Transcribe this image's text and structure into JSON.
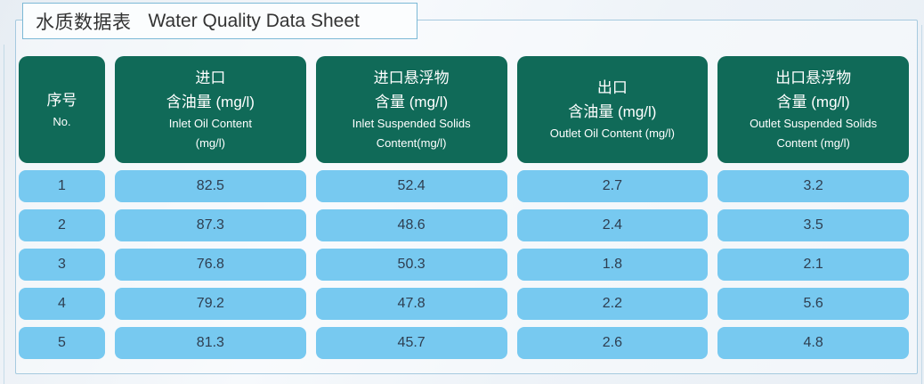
{
  "title": {
    "zh": "水质数据表",
    "en": "Water Quality Data Sheet"
  },
  "table": {
    "columns": [
      {
        "zh": [
          "序号"
        ],
        "en": [
          "No."
        ]
      },
      {
        "zh": [
          "进口",
          "含油量 (mg/l)"
        ],
        "en": [
          "Inlet Oil Content",
          "(mg/l)"
        ]
      },
      {
        "zh": [
          "进口悬浮物",
          "含量 (mg/l)"
        ],
        "en": [
          "Inlet Suspended Solids",
          "Content(mg/l)"
        ]
      },
      {
        "zh": [
          "出口",
          "含油量 (mg/l)"
        ],
        "en": [
          "Outlet Oil Content (mg/l)"
        ]
      },
      {
        "zh": [
          "出口悬浮物",
          "含量 (mg/l)"
        ],
        "en": [
          "Outlet Suspended Solids",
          "Content (mg/l)"
        ]
      }
    ],
    "rows": [
      [
        "1",
        "82.5",
        "52.4",
        "2.7",
        "3.2"
      ],
      [
        "2",
        "87.3",
        "48.6",
        "2.4",
        "3.5"
      ],
      [
        "3",
        "76.8",
        "50.3",
        "1.8",
        "2.1"
      ],
      [
        "4",
        "79.2",
        "47.8",
        "2.2",
        "5.6"
      ],
      [
        "5",
        "81.3",
        "45.7",
        "2.6",
        "4.8"
      ]
    ]
  },
  "colors": {
    "header_bg": "#106a58",
    "cell_bg": "#77c9f0",
    "frame_border": "#a6cadf",
    "title_border": "#7cb9d6",
    "header_text": "#ffffff",
    "cell_text": "#2e3e50"
  },
  "chart_data": {
    "type": "table",
    "title": "水质数据表 Water Quality Data Sheet",
    "columns": [
      "序号 No.",
      "进口含油量 (mg/l) Inlet Oil Content (mg/l)",
      "进口悬浮物含量 (mg/l) Inlet Suspended Solids Content(mg/l)",
      "出口含油量 (mg/l) Outlet Oil Content (mg/l)",
      "出口悬浮物含量 (mg/l) Outlet Suspended Solids Content (mg/l)"
    ],
    "rows": [
      [
        1,
        82.5,
        52.4,
        2.7,
        3.2
      ],
      [
        2,
        87.3,
        48.6,
        2.4,
        3.5
      ],
      [
        3,
        76.8,
        50.3,
        1.8,
        2.1
      ],
      [
        4,
        79.2,
        47.8,
        2.2,
        5.6
      ],
      [
        5,
        81.3,
        45.7,
        2.6,
        4.8
      ]
    ]
  }
}
